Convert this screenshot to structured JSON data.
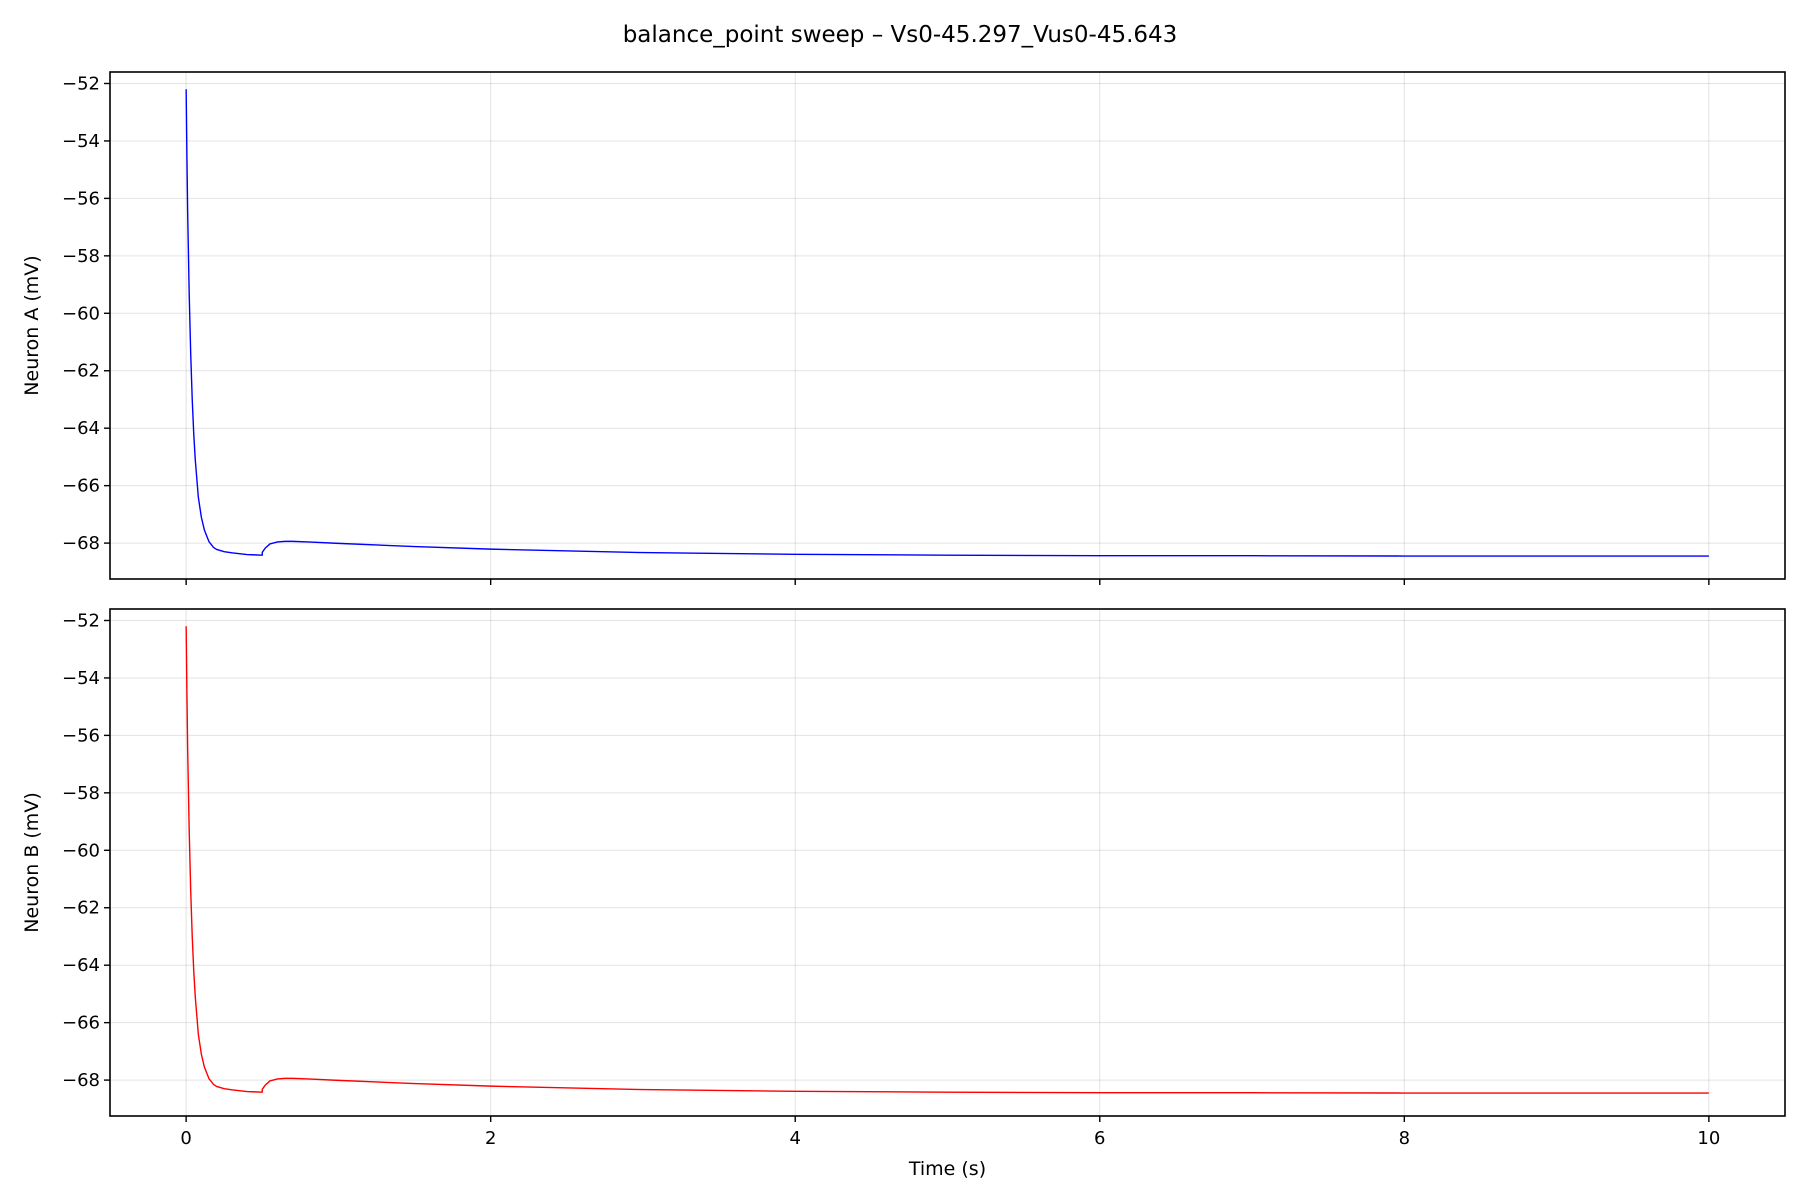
{
  "figure": {
    "title": "balance_point sweep – Vs0-45.297_Vus0-45.643"
  },
  "chart_data": [
    {
      "type": "line",
      "title": "",
      "xlabel": "",
      "ylabel": "Neuron A (mV)",
      "xlim": [
        -0.5,
        10.5
      ],
      "ylim": [
        -69.25,
        -51.6
      ],
      "xticks": [
        0,
        2,
        4,
        6,
        8,
        10
      ],
      "xtick_labels_visible": false,
      "yticks": [
        -52,
        -54,
        -56,
        -58,
        -60,
        -62,
        -64,
        -66,
        -68
      ],
      "ytick_labels": [
        "−52",
        "−54",
        "−56",
        "−58",
        "−60",
        "−62",
        "−64",
        "−66",
        "−68"
      ],
      "grid": true,
      "series": [
        {
          "color": "#0000ff",
          "x": [
            0,
            0.005,
            0.01,
            0.02,
            0.03,
            0.04,
            0.05,
            0.06,
            0.08,
            0.1,
            0.12,
            0.15,
            0.18,
            0.2,
            0.25,
            0.3,
            0.35,
            0.4,
            0.45,
            0.5,
            0.5,
            0.52,
            0.55,
            0.6,
            0.65,
            0.7,
            0.8,
            1.0,
            1.5,
            2.0,
            3.0,
            4.0,
            5.0,
            6.0,
            7.0,
            8.0,
            9.0,
            10.0
          ],
          "y": [
            -52.2,
            -54.5,
            -56.5,
            -59.3,
            -61.4,
            -63.0,
            -64.2,
            -65.1,
            -66.4,
            -67.1,
            -67.55,
            -67.95,
            -68.15,
            -68.22,
            -68.3,
            -68.34,
            -68.37,
            -68.4,
            -68.41,
            -68.42,
            -68.32,
            -68.17,
            -68.03,
            -67.96,
            -67.94,
            -67.94,
            -67.96,
            -68.01,
            -68.12,
            -68.21,
            -68.33,
            -68.39,
            -68.42,
            -68.44,
            -68.44,
            -68.45,
            -68.45,
            -68.45
          ]
        }
      ]
    },
    {
      "type": "line",
      "title": "",
      "xlabel": "Time (s)",
      "ylabel": "Neuron B (mV)",
      "xlim": [
        -0.5,
        10.5
      ],
      "ylim": [
        -69.25,
        -51.6
      ],
      "xticks": [
        0,
        2,
        4,
        6,
        8,
        10
      ],
      "xtick_labels": [
        "0",
        "2",
        "4",
        "6",
        "8",
        "10"
      ],
      "yticks": [
        -52,
        -54,
        -56,
        -58,
        -60,
        -62,
        -64,
        -66,
        -68
      ],
      "ytick_labels": [
        "−52",
        "−54",
        "−56",
        "−58",
        "−60",
        "−62",
        "−64",
        "−66",
        "−68"
      ],
      "grid": true,
      "series": [
        {
          "color": "#ff0000",
          "x": [
            0,
            0.005,
            0.01,
            0.02,
            0.03,
            0.04,
            0.05,
            0.06,
            0.08,
            0.1,
            0.12,
            0.15,
            0.18,
            0.2,
            0.25,
            0.3,
            0.35,
            0.4,
            0.45,
            0.5,
            0.5,
            0.52,
            0.55,
            0.6,
            0.65,
            0.7,
            0.8,
            1.0,
            1.5,
            2.0,
            3.0,
            4.0,
            5.0,
            6.0,
            7.0,
            8.0,
            9.0,
            10.0
          ],
          "y": [
            -52.2,
            -54.5,
            -56.5,
            -59.3,
            -61.4,
            -63.0,
            -64.2,
            -65.1,
            -66.4,
            -67.1,
            -67.55,
            -67.95,
            -68.15,
            -68.22,
            -68.3,
            -68.34,
            -68.37,
            -68.4,
            -68.41,
            -68.42,
            -68.32,
            -68.17,
            -68.03,
            -67.96,
            -67.94,
            -67.94,
            -67.96,
            -68.01,
            -68.12,
            -68.21,
            -68.33,
            -68.39,
            -68.42,
            -68.44,
            -68.44,
            -68.45,
            -68.45,
            -68.45
          ]
        }
      ]
    }
  ]
}
